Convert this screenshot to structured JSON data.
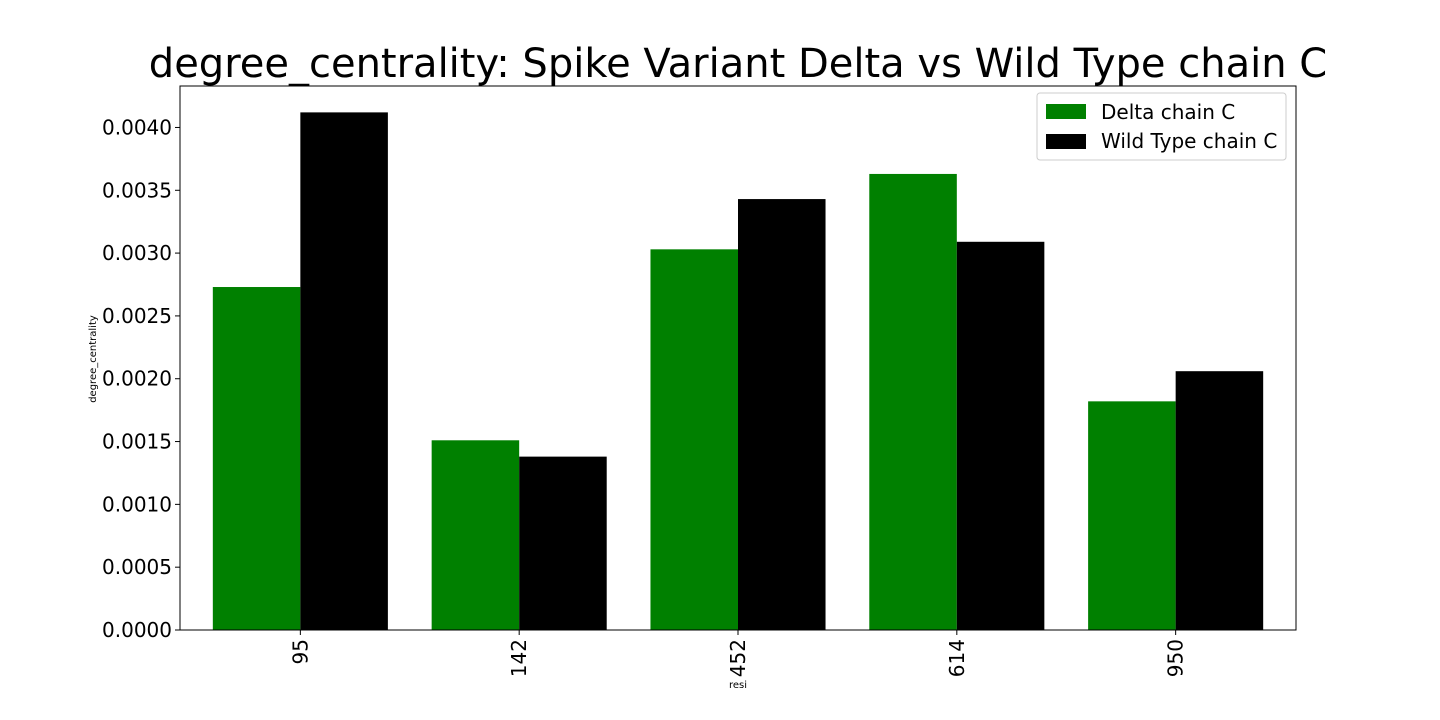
{
  "chart_data": {
    "type": "bar",
    "title": "degree_centrality: Spike Variant Delta vs Wild Type chain C",
    "xlabel": "resi",
    "ylabel": "degree_centrality",
    "categories": [
      "95",
      "142",
      "452",
      "614",
      "950"
    ],
    "series": [
      {
        "name": "Delta chain C",
        "color": "#008000",
        "values": [
          0.00273,
          0.00151,
          0.00303,
          0.00363,
          0.00182
        ]
      },
      {
        "name": "Wild Type chain C",
        "color": "#000000",
        "values": [
          0.00412,
          0.00138,
          0.00343,
          0.00309,
          0.00206
        ]
      }
    ],
    "ylim": [
      0,
      0.00433
    ],
    "yticks": [
      "0.0000",
      "0.0005",
      "0.0010",
      "0.0015",
      "0.0020",
      "0.0025",
      "0.0030",
      "0.0035",
      "0.0040"
    ],
    "grid": false,
    "legend_position": "top-right"
  }
}
